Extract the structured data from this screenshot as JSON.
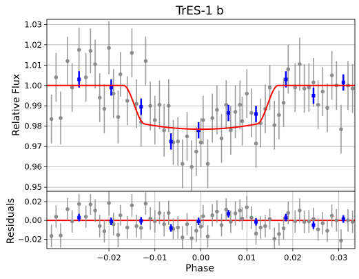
{
  "chart_data": [
    {
      "panel": "main",
      "type": "scatter",
      "title": "TrES-1 b",
      "xlabel": "",
      "ylabel": "Relative Flux",
      "xlim": [
        -0.0335,
        0.0335
      ],
      "ylim": [
        0.948,
        1.0325
      ],
      "yticks": [
        0.95,
        0.96,
        0.97,
        0.98,
        0.99,
        1.0,
        1.01,
        1.02,
        1.03
      ],
      "ytick_labels": [
        "0.95",
        "0.96",
        "0.97",
        "0.98",
        "0.99",
        "1.00",
        "1.01",
        "1.02",
        "1.03"
      ],
      "grid": "horizontal",
      "series": [
        {
          "color": "#8c8c8c",
          "marker": "circle",
          "errorbar": true,
          "points": [
            [
              -0.0325,
              0.9835,
              0.012
            ],
            [
              -0.0315,
              1.004,
              0.012
            ],
            [
              -0.0305,
              0.984,
              0.013
            ],
            [
              -0.029,
              1.012,
              0.012
            ],
            [
              -0.028,
              0.999,
              0.012
            ],
            [
              -0.0265,
              1.0175,
              0.011
            ],
            [
              -0.025,
              1.004,
              0.012
            ],
            [
              -0.024,
              1.017,
              0.011
            ],
            [
              -0.023,
              1.0105,
              0.012
            ],
            [
              -0.022,
              0.994,
              0.012
            ],
            [
              -0.021,
              0.9885,
              0.012
            ],
            [
              -0.02,
              1.0185,
              0.013
            ],
            [
              -0.019,
              0.996,
              0.012
            ],
            [
              -0.018,
              0.9845,
              0.013
            ],
            [
              -0.0175,
              1.0055,
              0.011
            ],
            [
              -0.016,
              0.9925,
              0.012
            ],
            [
              -0.015,
              1.016,
              0.012
            ],
            [
              -0.014,
              0.991,
              0.012
            ],
            [
              -0.013,
              0.982,
              0.012
            ],
            [
              -0.012,
              1.012,
              0.012
            ],
            [
              -0.011,
              0.99,
              0.012
            ],
            [
              -0.01,
              0.983,
              0.012
            ],
            [
              -0.009,
              0.9905,
              0.012
            ],
            [
              -0.008,
              0.978,
              0.013
            ],
            [
              -0.007,
              0.99,
              0.013
            ],
            [
              -0.006,
              0.972,
              0.011
            ],
            [
              -0.005,
              0.9725,
              0.012
            ],
            [
              -0.004,
              0.9615,
              0.012
            ],
            [
              -0.003,
              0.975,
              0.012
            ],
            [
              -0.002,
              0.96,
              0.013
            ],
            [
              -0.001,
              0.9675,
              0.012
            ],
            [
              0.0,
              0.972,
              0.012
            ],
            [
              0.0005,
              0.983,
              0.012
            ],
            [
              0.0015,
              0.9615,
              0.012
            ],
            [
              0.0025,
              0.984,
              0.012
            ],
            [
              0.0035,
              0.988,
              0.012
            ],
            [
              0.0045,
              0.974,
              0.012
            ],
            [
              0.0055,
              0.9905,
              0.012
            ],
            [
              0.0065,
              0.978,
              0.012
            ],
            [
              0.0075,
              0.987,
              0.013
            ],
            [
              0.0085,
              0.9905,
              0.012
            ],
            [
              0.009,
              0.9825,
              0.012
            ],
            [
              0.01,
              0.996,
              0.012
            ],
            [
              0.011,
              0.9865,
              0.012
            ],
            [
              0.012,
              0.9715,
              0.012
            ],
            [
              0.013,
              0.9815,
              0.012
            ],
            [
              0.014,
              0.9885,
              0.012
            ],
            [
              0.015,
              0.999,
              0.011
            ],
            [
              0.016,
              0.9805,
              0.012
            ],
            [
              0.017,
              0.9855,
              0.012
            ],
            [
              0.018,
              0.9915,
              0.012
            ],
            [
              0.019,
              1.008,
              0.012
            ],
            [
              0.0205,
              0.999,
              0.012
            ],
            [
              0.0215,
              1.0105,
              0.013
            ],
            [
              0.0225,
              0.9985,
              0.012
            ],
            [
              0.0235,
              0.999,
              0.012
            ],
            [
              0.0245,
              1.0015,
              0.012
            ],
            [
              0.0255,
              0.9905,
              0.012
            ],
            [
              0.0265,
              0.997,
              0.012
            ],
            [
              0.0275,
              0.989,
              0.012
            ],
            [
              0.0285,
              1.005,
              0.012
            ],
            [
              0.0295,
              1.0,
              0.012
            ],
            [
              0.0305,
              0.9785,
              0.012
            ],
            [
              0.032,
              1.0,
              0.012
            ],
            [
              0.033,
              0.9985,
              0.012
            ]
          ]
        },
        {
          "color": "#0000ff",
          "marker": "square",
          "errorbar": true,
          "points": [
            [
              -0.0265,
              1.003,
              0.004
            ],
            [
              -0.0195,
              0.999,
              0.004
            ],
            [
              -0.013,
              0.9895,
              0.004
            ],
            [
              -0.0065,
              0.9725,
              0.004
            ],
            [
              -0.0005,
              0.978,
              0.004
            ],
            [
              0.006,
              0.9865,
              0.004
            ],
            [
              0.012,
              0.986,
              0.004
            ],
            [
              0.0185,
              1.003,
              0.004
            ],
            [
              0.0245,
              0.995,
              0.004
            ],
            [
              0.031,
              1.0015,
              0.004
            ]
          ]
        },
        {
          "color": "#ff0000",
          "type": "line",
          "model": {
            "baseline": 1.0,
            "depth_center": 0.0215,
            "t1": -0.0168,
            "t2": -0.0122,
            "t3": 0.0122,
            "t4": 0.0168
          }
        }
      ]
    },
    {
      "panel": "residuals",
      "type": "scatter",
      "xlabel": "Phase",
      "ylabel": "Residuals",
      "xlim": [
        -0.0335,
        0.0335
      ],
      "ylim": [
        -0.03,
        0.031
      ],
      "xticks": [
        -0.02,
        -0.01,
        0.0,
        0.01,
        0.02,
        0.03
      ],
      "xtick_labels": [
        "−0.02",
        "−0.01",
        "0.00",
        "0.01",
        "0.02",
        "0.03"
      ],
      "yticks": [
        -0.02,
        0.0,
        0.02
      ],
      "ytick_labels": [
        "−0.02",
        "0.00",
        "0.02"
      ],
      "grid": "horizontal",
      "zero_line_color": "#ff0000",
      "series": [
        {
          "color": "#8c8c8c",
          "marker": "circle",
          "errorbar": true,
          "points": [
            [
              -0.0325,
              -0.0165,
              0.012
            ],
            [
              -0.0315,
              0.004,
              0.012
            ],
            [
              -0.0305,
              -0.016,
              0.013
            ],
            [
              -0.029,
              0.012,
              0.012
            ],
            [
              -0.028,
              -0.001,
              0.012
            ],
            [
              -0.0265,
              0.0175,
              0.011
            ],
            [
              -0.025,
              0.004,
              0.012
            ],
            [
              -0.024,
              0.017,
              0.011
            ],
            [
              -0.023,
              0.0105,
              0.012
            ],
            [
              -0.022,
              -0.006,
              0.012
            ],
            [
              -0.021,
              -0.0115,
              0.012
            ],
            [
              -0.02,
              0.0185,
              0.013
            ],
            [
              -0.019,
              -0.004,
              0.012
            ],
            [
              -0.018,
              -0.0155,
              0.013
            ],
            [
              -0.0175,
              0.0055,
              0.011
            ],
            [
              -0.016,
              -0.0075,
              0.012
            ],
            [
              -0.015,
              0.016,
              0.012
            ],
            [
              -0.014,
              -0.006,
              0.012
            ],
            [
              -0.013,
              -0.008,
              0.012
            ],
            [
              -0.012,
              0.018,
              0.012
            ],
            [
              -0.011,
              0.002,
              0.012
            ],
            [
              -0.01,
              -0.001,
              0.012
            ],
            [
              -0.009,
              0.008,
              0.012
            ],
            [
              -0.008,
              -0.004,
              0.013
            ],
            [
              -0.007,
              0.008,
              0.013
            ],
            [
              -0.006,
              -0.009,
              0.011
            ],
            [
              -0.005,
              -0.0075,
              0.012
            ],
            [
              -0.004,
              -0.018,
              0.012
            ],
            [
              -0.003,
              -0.004,
              0.012
            ],
            [
              -0.002,
              -0.019,
              0.013
            ],
            [
              -0.001,
              -0.011,
              0.012
            ],
            [
              0.0,
              -0.0065,
              0.012
            ],
            [
              0.0005,
              0.0045,
              0.012
            ],
            [
              0.0015,
              -0.017,
              0.012
            ],
            [
              0.0025,
              0.0055,
              0.012
            ],
            [
              0.0035,
              0.0095,
              0.012
            ],
            [
              0.0045,
              -0.005,
              0.012
            ],
            [
              0.0055,
              0.0115,
              0.012
            ],
            [
              0.0065,
              -0.0015,
              0.012
            ],
            [
              0.0075,
              0.0075,
              0.013
            ],
            [
              0.0085,
              0.0105,
              0.012
            ],
            [
              0.009,
              0.002,
              0.012
            ],
            [
              0.01,
              0.014,
              0.012
            ],
            [
              0.011,
              0.003,
              0.012
            ],
            [
              0.012,
              -0.014,
              0.012
            ],
            [
              0.013,
              -0.0075,
              0.012
            ],
            [
              0.014,
              -0.006,
              0.012
            ],
            [
              0.015,
              0.0015,
              0.011
            ],
            [
              0.016,
              -0.0195,
              0.012
            ],
            [
              0.017,
              -0.0145,
              0.012
            ],
            [
              0.018,
              -0.0085,
              0.012
            ],
            [
              0.019,
              0.008,
              0.012
            ],
            [
              0.0205,
              -0.001,
              0.012
            ],
            [
              0.0215,
              0.0105,
              0.013
            ],
            [
              0.0225,
              -0.0015,
              0.012
            ],
            [
              0.0235,
              -0.001,
              0.012
            ],
            [
              0.0245,
              0.0015,
              0.012
            ],
            [
              0.0255,
              -0.0095,
              0.012
            ],
            [
              0.0265,
              -0.003,
              0.012
            ],
            [
              0.0275,
              -0.011,
              0.012
            ],
            [
              0.0285,
              0.005,
              0.012
            ],
            [
              0.0295,
              0.0,
              0.012
            ],
            [
              0.0305,
              -0.0215,
              0.012
            ],
            [
              0.032,
              0.0,
              0.012
            ],
            [
              0.033,
              -0.0015,
              0.012
            ]
          ]
        },
        {
          "color": "#0000ff",
          "marker": "square",
          "errorbar": true,
          "points": [
            [
              -0.0265,
              0.003,
              0.004
            ],
            [
              -0.0195,
              -0.001,
              0.004
            ],
            [
              -0.013,
              -0.0005,
              0.004
            ],
            [
              -0.0065,
              -0.008,
              0.004
            ],
            [
              -0.0005,
              -0.001,
              0.004
            ],
            [
              0.006,
              0.007,
              0.004
            ],
            [
              0.012,
              -0.0015,
              0.004
            ],
            [
              0.0185,
              0.003,
              0.004
            ],
            [
              0.0245,
              -0.005,
              0.004
            ],
            [
              0.031,
              0.0015,
              0.004
            ]
          ]
        }
      ]
    }
  ]
}
